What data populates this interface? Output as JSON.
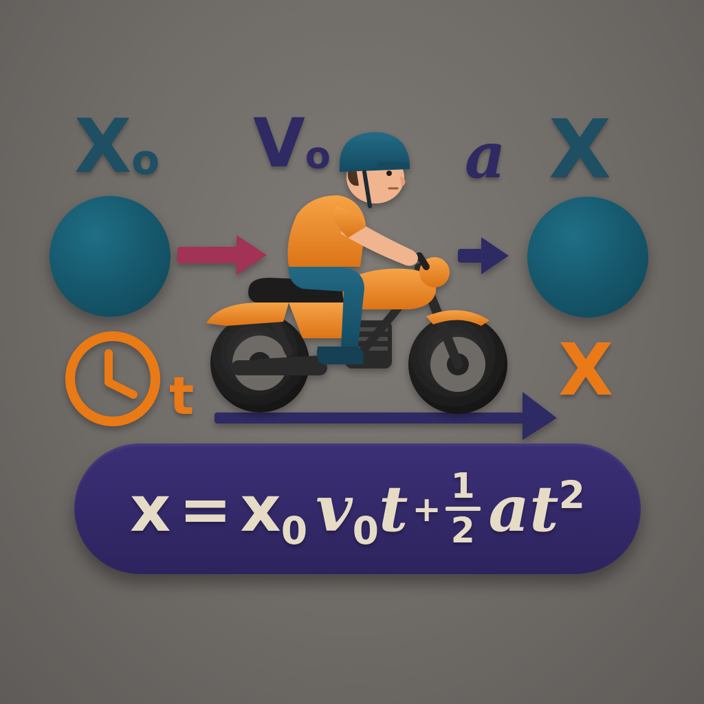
{
  "labels": {
    "x0_base": "X",
    "x0_sub": "o",
    "v0_base": "V",
    "v0_sub": "o",
    "a": "a",
    "x_top": "X",
    "x_orange": "X",
    "t": "t"
  },
  "equation": {
    "lhs": "x",
    "equals": "=",
    "x0_base": "x",
    "x0_sub": "0",
    "v0_base": "v",
    "v0_sub": "0",
    "t": "t",
    "plus": "+",
    "frac_num": "1",
    "frac_den": "2",
    "a": "a",
    "t2_base": "t",
    "t2_exp": "2"
  },
  "colors": {
    "teal": "#1e4f63",
    "indigo": "#2f2a63",
    "orange": "#e97a17",
    "crimson": "#a23356",
    "equation_bg": "#33296a",
    "equation_text": "#e6dcc6"
  },
  "icons": {
    "clock": "clock-icon",
    "motorcycle": "motorcycle-rider-icon"
  }
}
